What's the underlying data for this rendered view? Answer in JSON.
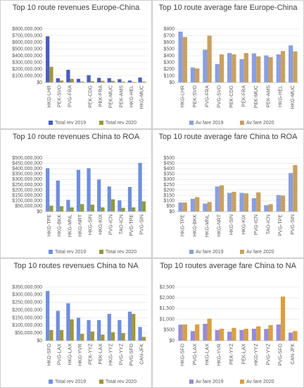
{
  "chart_data": [
    {
      "type": "bar",
      "title": "Top 10 route revenues Europe-China",
      "categories": [
        "HKG-LHR",
        "PEK-SVO",
        "PVG-FRA",
        null,
        "PEK-CDG",
        "PEK-FRA",
        "PEK-MUC",
        "PEK-AMS",
        "HKG-HEL",
        "HKG-MUC"
      ],
      "series": [
        {
          "name": "Total rev 2019",
          "color": "#4a5dbf",
          "values": [
            690000000,
            65000000,
            190000000,
            55000000,
            110000000,
            70000000,
            65000000,
            50000000,
            30000000,
            75000000
          ]
        },
        {
          "name": "Total rev 2020",
          "color": "#a1983a",
          "values": [
            235000000,
            30000000,
            55000000,
            15000000,
            20000000,
            25000000,
            25000000,
            15000000,
            10000000,
            15000000
          ]
        }
      ],
      "ylim": [
        0,
        800000000
      ],
      "yticks": [
        {
          "value": 0,
          "label": "$0"
        },
        {
          "value": 100000000,
          "label": "$100,000,000"
        },
        {
          "value": 200000000,
          "label": "$200,000,000"
        },
        {
          "value": 300000000,
          "label": "$300,000,000"
        },
        {
          "value": 400000000,
          "label": "$400,000,000"
        },
        {
          "value": 500000000,
          "label": "$500,000,000"
        },
        {
          "value": 600000000,
          "label": "$600,000,000"
        },
        {
          "value": 700000000,
          "label": "$700,000,000"
        },
        {
          "value": 800000000,
          "label": "$800,000,000"
        }
      ],
      "grid": true
    },
    {
      "type": "bar",
      "title": "Top 10 route average fare Europe-China",
      "categories": [
        "HKG-LHR",
        "PEK-SVO",
        "PVG-FRA",
        "PVG-SVO",
        "PEK-CDG",
        "PEK-FRA",
        "PEK-MUC",
        "PEK-AMS",
        "HKG-HEL",
        "HKG-MUC"
      ],
      "series": [
        {
          "name": "Av fare 2019",
          "color": "#8a9fe0",
          "values": [
            760,
            225,
            490,
            275,
            440,
            350,
            435,
            405,
            420,
            555
          ]
        },
        {
          "name": "Av fare 2020",
          "color": "#c9a060",
          "values": [
            680,
            210,
            700,
            420,
            420,
            440,
            390,
            380,
            470,
            465
          ]
        }
      ],
      "ylim": [
        0,
        800
      ],
      "yticks": [
        {
          "value": 0,
          "label": "$0"
        },
        {
          "value": 100,
          "label": "$100"
        },
        {
          "value": 200,
          "label": "$200"
        },
        {
          "value": 300,
          "label": "$300"
        },
        {
          "value": 400,
          "label": "$400"
        },
        {
          "value": 500,
          "label": "$500"
        },
        {
          "value": 600,
          "label": "$600"
        },
        {
          "value": 700,
          "label": "$700"
        },
        {
          "value": 800,
          "label": "$800"
        }
      ],
      "grid": true
    },
    {
      "type": "bar",
      "title": "Top 10 route revenues China to ROA",
      "categories": [
        "HKG-TPE",
        "HKG-BKK",
        "HKG-MNL",
        "HKG-NRT",
        "HKG-SIN",
        "HKG-KIX",
        "PVG-ICN",
        "TAO-ICN",
        "PVG-TPE",
        "PVG-SIN"
      ],
      "series": [
        {
          "name": "Total rev 2019",
          "color": "#6f8fdc",
          "values": [
            405000000,
            290000000,
            110000000,
            390000000,
            405000000,
            300000000,
            235000000,
            105000000,
            230000000,
            455000000
          ]
        },
        {
          "name": "Total rev 2020",
          "color": "#8f9a3a",
          "values": [
            55000000,
            50000000,
            40000000,
            70000000,
            65000000,
            40000000,
            115000000,
            35000000,
            40000000,
            95000000
          ]
        }
      ],
      "ylim": [
        0,
        500000000
      ],
      "yticks": [
        {
          "value": 0,
          "label": "$0"
        },
        {
          "value": 50000000,
          "label": "$50,000,000"
        },
        {
          "value": 100000000,
          "label": "$100,000,000"
        },
        {
          "value": 150000000,
          "label": "$150,000,000"
        },
        {
          "value": 200000000,
          "label": "$200,000,000"
        },
        {
          "value": 250000000,
          "label": "$250,000,000"
        },
        {
          "value": 300000000,
          "label": "$300,000,000"
        },
        {
          "value": 350000000,
          "label": "$350,000,000"
        },
        {
          "value": 400000000,
          "label": "$400,000,000"
        },
        {
          "value": 450000000,
          "label": "$450,000,000"
        },
        {
          "value": 500000000,
          "label": "$500,000,000"
        }
      ],
      "grid": true
    },
    {
      "type": "bar",
      "title": "Top 10 route average fare China to ROA",
      "categories": [
        "HKG-TPE",
        "HKG-BKK",
        "HKG-MNL",
        "HKG-NRT",
        "HKG-SIN",
        "HKG-KIX",
        "PVG-ICN",
        "TAO-ICN",
        "PVG-TPE",
        "PVG-SIN"
      ],
      "series": [
        {
          "name": "Av fare 2019",
          "color": "#8a9fe0",
          "values": [
            85,
            120,
            75,
            235,
            175,
            175,
            125,
            60,
            155,
            360
          ]
        },
        {
          "name": "Av fare 2020",
          "color": "#c9a060",
          "values": [
            85,
            135,
            90,
            245,
            185,
            170,
            180,
            70,
            150,
            435
          ]
        }
      ],
      "ylim": [
        0,
        500
      ],
      "yticks": [
        {
          "value": 0,
          "label": "$0"
        },
        {
          "value": 50,
          "label": "$50"
        },
        {
          "value": 100,
          "label": "$100"
        },
        {
          "value": 150,
          "label": "$150"
        },
        {
          "value": 200,
          "label": "$200"
        },
        {
          "value": 250,
          "label": "$250"
        },
        {
          "value": 300,
          "label": "$300"
        },
        {
          "value": 350,
          "label": "$350"
        },
        {
          "value": 400,
          "label": "$400"
        },
        {
          "value": 450,
          "label": "$450"
        },
        {
          "value": 500,
          "label": "$500"
        }
      ],
      "grid": true
    },
    {
      "type": "bar",
      "title": "Top 10 routes revenues China to NA",
      "categories": [
        "HKG-SFO",
        "PVG-LAX",
        "HKG-LAX",
        "HKG-YVR",
        "PEK-YYZ",
        "PEK-LAX",
        "HKG-YYZ",
        "PVG-YYZ",
        "PVG-SFO",
        "CAN-JFK"
      ],
      "series": [
        {
          "name": "Total rev 2019",
          "color": "#6f8fdc",
          "values": [
            325000000,
            195000000,
            245000000,
            150000000,
            135000000,
            135000000,
            175000000,
            135000000,
            190000000,
            90000000
          ]
        },
        {
          "name": "Total rev 2020",
          "color": "#a0963a",
          "values": [
            70000000,
            70000000,
            140000000,
            45000000,
            60000000,
            40000000,
            55000000,
            50000000,
            175000000,
            25000000
          ]
        }
      ],
      "ylim": [
        0,
        350000000
      ],
      "yticks": [
        {
          "value": 0,
          "label": "$0"
        },
        {
          "value": 50000000,
          "label": "$50,000,000"
        },
        {
          "value": 100000000,
          "label": "$100,000,000"
        },
        {
          "value": 150000000,
          "label": "$150,000,000"
        },
        {
          "value": 200000000,
          "label": "$200,000,000"
        },
        {
          "value": 250000000,
          "label": "$250,000,000"
        },
        {
          "value": 300000000,
          "label": "$300,000,000"
        },
        {
          "value": 350000000,
          "label": "$350,000,000"
        }
      ],
      "grid": true
    },
    {
      "type": "bar",
      "title": "Top 10 routes average fare China to NA",
      "categories": [
        "HKG-SFO",
        "PVG-LAX",
        "HKG-LAX",
        "HKG-YVR",
        "PEK-YYZ",
        "PEK-LAX",
        "HKG-YYZ",
        "PVG-YYZ",
        "PVG-SFO",
        "CAN-JFK"
      ],
      "series": [
        {
          "name": "Av fare 2019",
          "color": "#9a8ad8",
          "values": [
            750,
            450,
            790,
            500,
            420,
            500,
            560,
            550,
            760,
            380
          ]
        },
        {
          "name": "Av fare 2020",
          "color": "#d9a040",
          "values": [
            760,
            760,
            1030,
            560,
            600,
            560,
            670,
            730,
            2060,
            450
          ]
        }
      ],
      "ylim": [
        0,
        2500
      ],
      "yticks": [
        {
          "value": 0,
          "label": "$0"
        },
        {
          "value": 500,
          "label": "$500"
        },
        {
          "value": 1000,
          "label": "$1,000"
        },
        {
          "value": 1500,
          "label": "$1,500"
        },
        {
          "value": 2000,
          "label": "$2,000"
        },
        {
          "value": 2500,
          "label": "$2,500"
        }
      ],
      "grid": true
    }
  ]
}
